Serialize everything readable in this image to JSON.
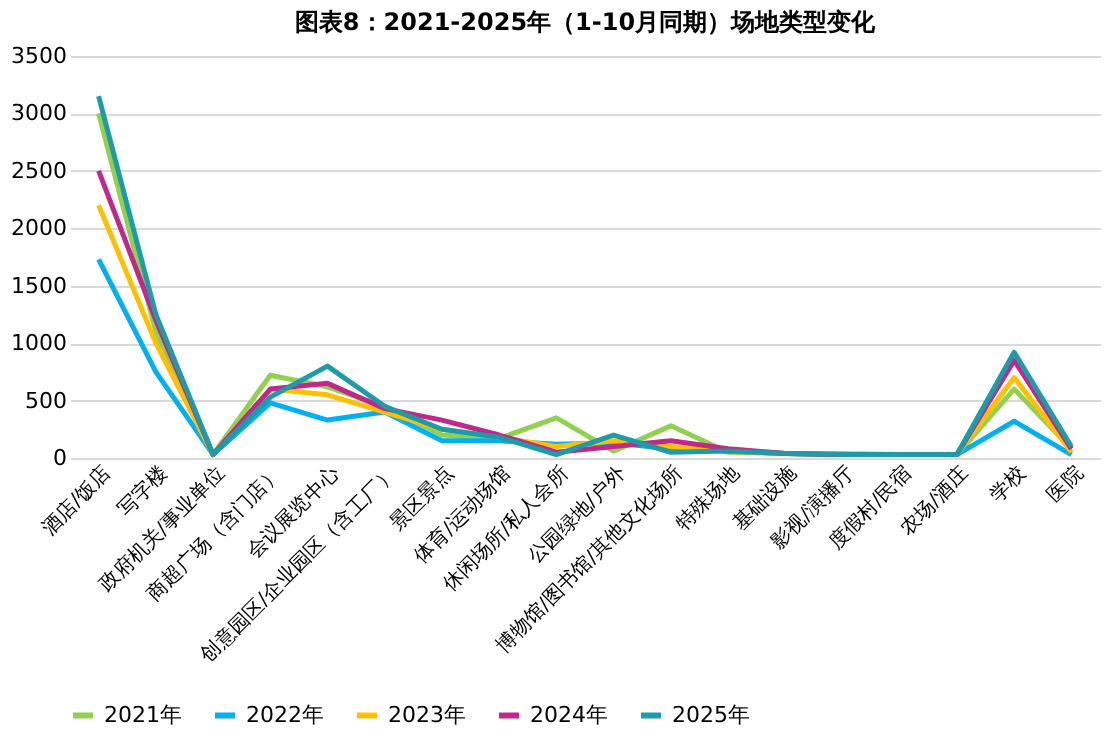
{
  "chart_data": {
    "type": "line",
    "title": "图表8：2021-2025年（1-10月同期）场地类型变化",
    "categories": [
      "酒店/饭店",
      "写字楼",
      "政府机关/事业单位",
      "商超广场（含门店）",
      "会议展览中心",
      "创意园区/企业园区（含工厂）",
      "景区景点",
      "体育/运动场馆",
      "休闲场所/私人会所",
      "公园绿地/户外",
      "博物馆/图书馆/其他文化场所",
      "特殊场地",
      "基础设施",
      "影视/演播厅",
      "度假村/民宿",
      "农场/酒庄",
      "学校",
      "医院"
    ],
    "series": [
      {
        "name": "2021年",
        "color": "#92d050",
        "values": [
          3000,
          1100,
          30,
          720,
          620,
          450,
          200,
          170,
          350,
          60,
          280,
          50,
          40,
          30,
          30,
          30,
          600,
          80
        ]
      },
      {
        "name": "2022年",
        "color": "#00b0f0",
        "values": [
          1730,
          750,
          30,
          480,
          330,
          400,
          150,
          150,
          120,
          130,
          80,
          60,
          40,
          30,
          30,
          30,
          320,
          30
        ]
      },
      {
        "name": "2023年",
        "color": "#ffc000",
        "values": [
          2200,
          1000,
          30,
          600,
          550,
          400,
          250,
          180,
          100,
          150,
          100,
          60,
          40,
          40,
          30,
          30,
          700,
          50
        ]
      },
      {
        "name": "2024年",
        "color": "#c0288a",
        "values": [
          2500,
          1200,
          30,
          600,
          650,
          430,
          330,
          200,
          50,
          100,
          150,
          80,
          40,
          30,
          30,
          30,
          850,
          80
        ]
      },
      {
        "name": "2025年",
        "color": "#1e9ba8",
        "values": [
          3150,
          1250,
          30,
          530,
          800,
          450,
          250,
          180,
          30,
          200,
          50,
          60,
          40,
          30,
          30,
          30,
          920,
          100
        ]
      }
    ],
    "ylim": [
      0,
      3500
    ],
    "yticks": [
      0,
      500,
      1000,
      1500,
      2000,
      2500,
      3000,
      3500
    ],
    "grid": "y",
    "legend": "bottom",
    "marker": "none",
    "line_style": "solid"
  }
}
